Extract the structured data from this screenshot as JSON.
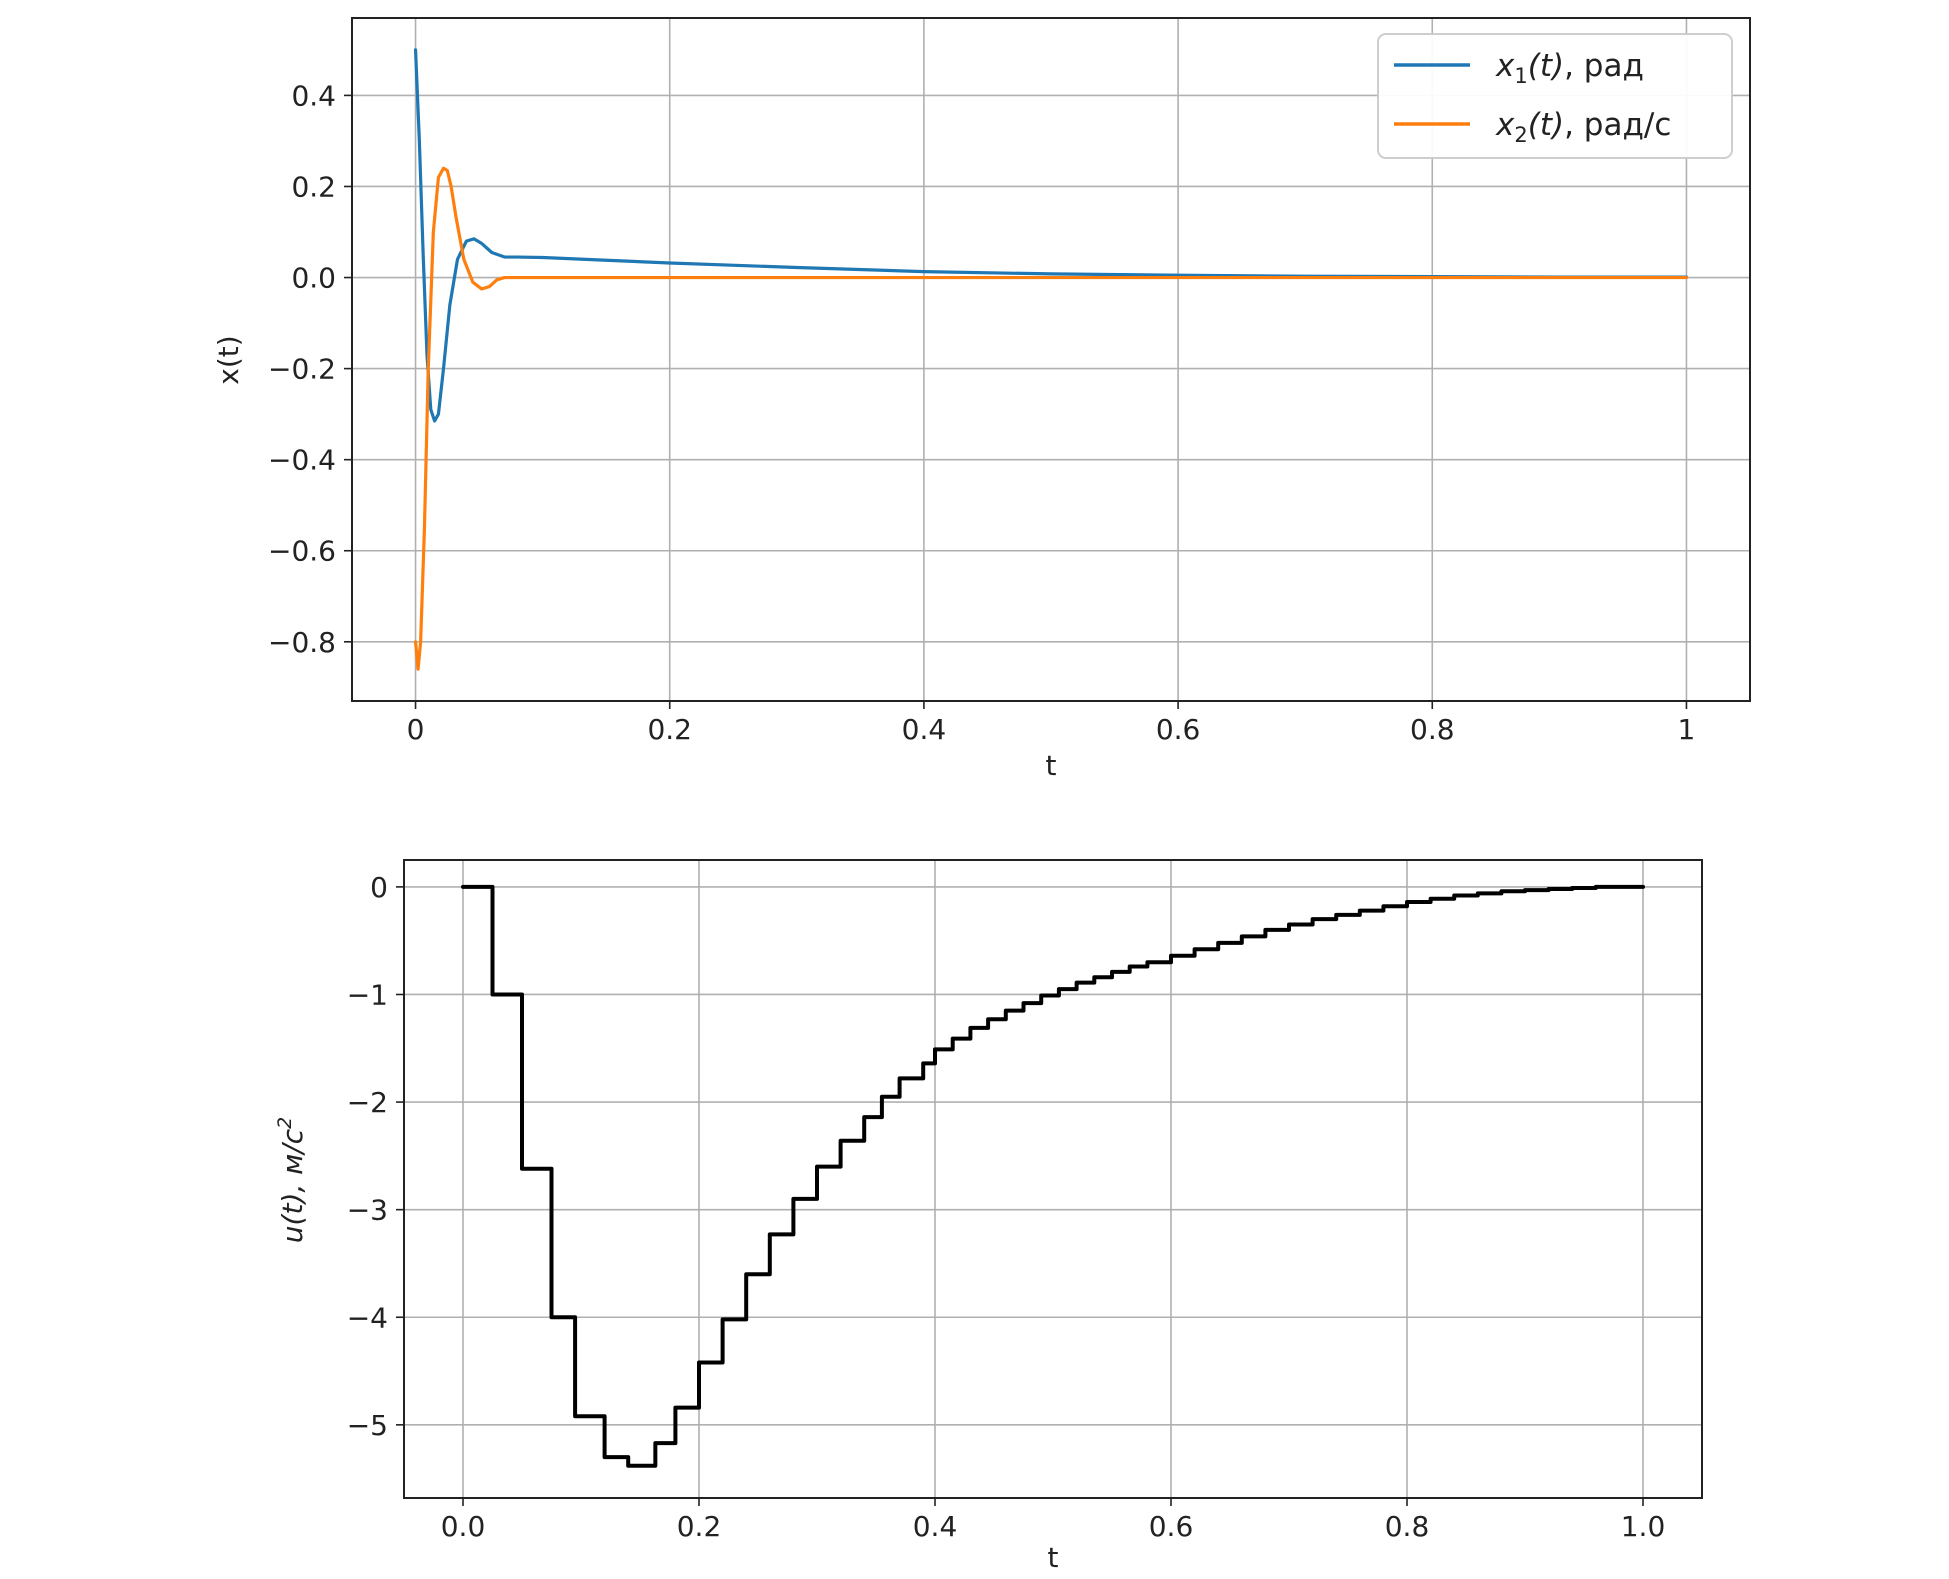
{
  "chart_data": [
    {
      "type": "line",
      "xlabel": "t",
      "ylabel": "x(t)",
      "xlim": [
        -0.05,
        1.05
      ],
      "ylim": [
        -0.93,
        0.57
      ],
      "xticks": [
        0,
        0.2,
        0.4,
        0.6,
        0.8,
        1
      ],
      "xtick_labels": [
        "0",
        "0.2",
        "0.4",
        "0.6",
        "0.8",
        "1"
      ],
      "yticks": [
        0.4,
        0.2,
        0.0,
        -0.2,
        -0.4,
        -0.6,
        -0.8
      ],
      "ytick_labels": [
        "0.4",
        "0.2",
        "0.0",
        "−0.2",
        "−0.4",
        "−0.6",
        "−0.8"
      ],
      "grid": true,
      "legend_position": "top-right",
      "series": [
        {
          "name": "x₁(t), рад",
          "legend_var": "x",
          "legend_sub": "1",
          "legend_arg": "(t)",
          "legend_unit": ", рад",
          "color": "#1f77b4",
          "x": [
            0,
            0.003,
            0.006,
            0.009,
            0.012,
            0.015,
            0.018,
            0.022,
            0.027,
            0.033,
            0.04,
            0.046,
            0.052,
            0.06,
            0.07,
            0.08,
            0.1,
            0.15,
            0.2,
            0.3,
            0.4,
            0.5,
            0.6,
            0.7,
            0.8,
            0.9,
            1.0
          ],
          "y": [
            0.5,
            0.3,
            0.05,
            -0.17,
            -0.29,
            -0.315,
            -0.3,
            -0.2,
            -0.06,
            0.04,
            0.08,
            0.085,
            0.075,
            0.055,
            0.045,
            0.045,
            0.044,
            0.038,
            0.032,
            0.022,
            0.013,
            0.008,
            0.005,
            0.003,
            0.002,
            0.001,
            0.001
          ]
        },
        {
          "name": "x₂(t), рад/с",
          "legend_var": "x",
          "legend_sub": "2",
          "legend_arg": "(t)",
          "legend_unit": ", рад/с",
          "color": "#ff7f0e",
          "x": [
            0,
            0.002,
            0.004,
            0.007,
            0.01,
            0.014,
            0.018,
            0.022,
            0.025,
            0.028,
            0.032,
            0.038,
            0.045,
            0.052,
            0.058,
            0.064,
            0.07,
            0.08,
            0.1,
            0.2,
            0.4,
            0.6,
            0.8,
            1.0
          ],
          "y": [
            -0.8,
            -0.86,
            -0.8,
            -0.55,
            -0.2,
            0.1,
            0.22,
            0.24,
            0.235,
            0.2,
            0.13,
            0.04,
            -0.01,
            -0.025,
            -0.02,
            -0.005,
            0.0,
            0.0,
            0.0,
            0.0,
            0.0,
            0.0,
            0.0,
            0.0
          ]
        }
      ]
    },
    {
      "type": "line",
      "step": "post",
      "xlabel": "t",
      "ylabel_main": "u(t), м/c",
      "ylabel_sup": "2",
      "xlim": [
        -0.05,
        1.05
      ],
      "ylim": [
        -5.68,
        0.25
      ],
      "xticks": [
        0.0,
        0.2,
        0.4,
        0.6,
        0.8,
        1.0
      ],
      "xtick_labels": [
        "0.0",
        "0.2",
        "0.4",
        "0.6",
        "0.8",
        "1.0"
      ],
      "yticks": [
        0,
        -1,
        -2,
        -3,
        -4,
        -5
      ],
      "ytick_labels": [
        "0",
        "−1",
        "−2",
        "−3",
        "−4",
        "−5"
      ],
      "grid": true,
      "series": [
        {
          "color": "#000000",
          "x": [
            0,
            0.025,
            0.05,
            0.075,
            0.095,
            0.12,
            0.14,
            0.163,
            0.18,
            0.2,
            0.22,
            0.24,
            0.26,
            0.28,
            0.3,
            0.32,
            0.34,
            0.355,
            0.37,
            0.39,
            0.4,
            0.415,
            0.43,
            0.445,
            0.46,
            0.475,
            0.49,
            0.505,
            0.52,
            0.535,
            0.55,
            0.565,
            0.58,
            0.6,
            0.62,
            0.64,
            0.66,
            0.68,
            0.7,
            0.72,
            0.74,
            0.76,
            0.78,
            0.8,
            0.82,
            0.84,
            0.86,
            0.88,
            0.9,
            0.92,
            0.94,
            0.96,
            0.98,
            1.0
          ],
          "y": [
            0,
            -1.0,
            -2.62,
            -4.0,
            -4.92,
            -5.3,
            -5.38,
            -5.17,
            -4.84,
            -4.42,
            -4.02,
            -3.6,
            -3.23,
            -2.9,
            -2.6,
            -2.36,
            -2.14,
            -1.95,
            -1.78,
            -1.64,
            -1.51,
            -1.41,
            -1.31,
            -1.23,
            -1.15,
            -1.08,
            -1.01,
            -0.95,
            -0.89,
            -0.84,
            -0.79,
            -0.74,
            -0.7,
            -0.64,
            -0.58,
            -0.52,
            -0.46,
            -0.4,
            -0.35,
            -0.3,
            -0.26,
            -0.22,
            -0.18,
            -0.14,
            -0.11,
            -0.08,
            -0.06,
            -0.04,
            -0.03,
            -0.02,
            -0.01,
            0.0,
            0.0,
            0.0
          ]
        }
      ]
    }
  ]
}
